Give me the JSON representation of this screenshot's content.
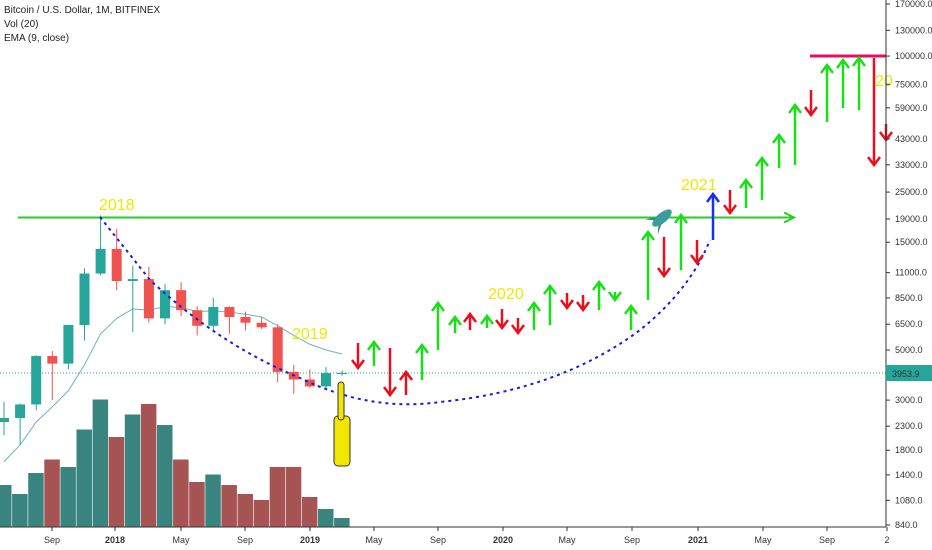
{
  "legend": {
    "title": "Bitcoin / U.S. Dollar, 1M, BITFINEX",
    "vol": "Vol (20)",
    "ema": "EMA (9, close)"
  },
  "last_price": "3953.9",
  "colors": {
    "bull": "#26a69a",
    "bear": "#ef5350",
    "vol_bull": "#2e7d78",
    "vol_bear": "#a14a4a",
    "ema": "#6fb3bd",
    "dotted_cup": "#1a1ad8",
    "resistance_line": "#29cc29",
    "arrow_up": "#18e018",
    "arrow_down": "#e8101e",
    "arrow_blue": "#1530f0",
    "top_line": "#e0105a",
    "annotation": "#f2e600"
  },
  "annotations": [
    "2018",
    "2019",
    "2020",
    "2021",
    "20"
  ],
  "chart_data": {
    "type": "candlestick",
    "title": "Bitcoin / U.S. Dollar, 1M, BITFINEX",
    "y_scale": "log",
    "ylim": [
      840,
      170000
    ],
    "y_ticks": [
      "170000.0",
      "130000.0",
      "100000.0",
      "75000.0",
      "59000.0",
      "43000.0",
      "33000.0",
      "25000.0",
      "19000.0",
      "15000.0",
      "11000.0",
      "8500.0",
      "6500.0",
      "5000.0",
      "3900.0",
      "3000.0",
      "2300.0",
      "1800.0",
      "1400.0",
      "1080.0",
      "840.0"
    ],
    "x_ticks": [
      "Sep",
      "2018",
      "May",
      "Sep",
      "2019",
      "May",
      "Sep",
      "2020",
      "May",
      "Sep",
      "2021",
      "May",
      "Sep",
      "2"
    ],
    "candles": [
      {
        "t": "2017-06",
        "o": 2400,
        "h": 2950,
        "l": 2100,
        "c": 2500
      },
      {
        "t": "2017-07",
        "o": 2500,
        "h": 2900,
        "l": 1900,
        "c": 2870
      },
      {
        "t": "2017-08",
        "o": 2870,
        "h": 4750,
        "l": 2700,
        "c": 4700
      },
      {
        "t": "2017-09",
        "o": 4700,
        "h": 4950,
        "l": 3000,
        "c": 4350
      },
      {
        "t": "2017-10",
        "o": 4350,
        "h": 6450,
        "l": 4100,
        "c": 6450
      },
      {
        "t": "2017-11",
        "o": 6450,
        "h": 11500,
        "l": 5500,
        "c": 10900
      },
      {
        "t": "2017-12",
        "o": 10900,
        "h": 19700,
        "l": 10700,
        "c": 14000
      },
      {
        "t": "2018-01",
        "o": 14000,
        "h": 17200,
        "l": 9200,
        "c": 10100
      },
      {
        "t": "2018-02",
        "o": 10100,
        "h": 11800,
        "l": 6000,
        "c": 10300
      },
      {
        "t": "2018-03",
        "o": 10300,
        "h": 11700,
        "l": 6600,
        "c": 6900
      },
      {
        "t": "2018-04",
        "o": 6900,
        "h": 9800,
        "l": 6500,
        "c": 9200
      },
      {
        "t": "2018-05",
        "o": 9200,
        "h": 10000,
        "l": 7050,
        "c": 7500
      },
      {
        "t": "2018-06",
        "o": 7500,
        "h": 7800,
        "l": 5800,
        "c": 6400
      },
      {
        "t": "2018-07",
        "o": 6400,
        "h": 8500,
        "l": 6100,
        "c": 7750
      },
      {
        "t": "2018-08",
        "o": 7750,
        "h": 7800,
        "l": 5900,
        "c": 7000
      },
      {
        "t": "2018-09",
        "o": 7000,
        "h": 7400,
        "l": 6100,
        "c": 6600
      },
      {
        "t": "2018-10",
        "o": 6600,
        "h": 7000,
        "l": 6200,
        "c": 6300
      },
      {
        "t": "2018-11",
        "o": 6300,
        "h": 6500,
        "l": 3600,
        "c": 4000
      },
      {
        "t": "2018-12",
        "o": 4000,
        "h": 4300,
        "l": 3200,
        "c": 3700
      },
      {
        "t": "2019-01",
        "o": 3700,
        "h": 4100,
        "l": 3400,
        "c": 3450
      },
      {
        "t": "2019-02",
        "o": 3450,
        "h": 4200,
        "l": 3400,
        "c": 3950
      },
      {
        "t": "2019-03",
        "o": 3950,
        "h": 4050,
        "l": 3850,
        "c": 3954
      }
    ],
    "volume_relative": [
      0.28,
      0.22,
      0.36,
      0.45,
      0.4,
      0.65,
      0.85,
      0.6,
      0.75,
      0.82,
      0.68,
      0.45,
      0.3,
      0.35,
      0.28,
      0.22,
      0.18,
      0.4,
      0.4,
      0.2,
      0.12,
      0.06
    ],
    "ema_9": [
      1600,
      1900,
      2400,
      2800,
      3300,
      4300,
      5900,
      6900,
      7600,
      7500,
      7800,
      7700,
      7400,
      7450,
      7350,
      7200,
      7000,
      6400,
      5800,
      5300,
      5000,
      4800
    ],
    "resistance_level": 19300,
    "projection_top": 100000
  }
}
